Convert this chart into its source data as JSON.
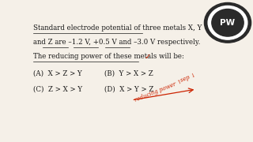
{
  "bg_color": "#f5f0e8",
  "text_color": "#1a1a1a",
  "red_color": "#cc2200",
  "line1": "Standard electrode potential of three metals X, Y",
  "line2": "and Z are –1.2 V, +0.5 V and –3.0 V respectively.",
  "line3": "The reducing power of these metals will be:",
  "optA": "(A)  X > Z > Y",
  "optB": "(B)  Y > X > Z",
  "optC": "(C)  Z > X > Y",
  "optD": "(D)  X > Y > Z",
  "logo_circle_color": "#2a2a2a",
  "fs_main": 6.2,
  "fs_opt": 6.2
}
